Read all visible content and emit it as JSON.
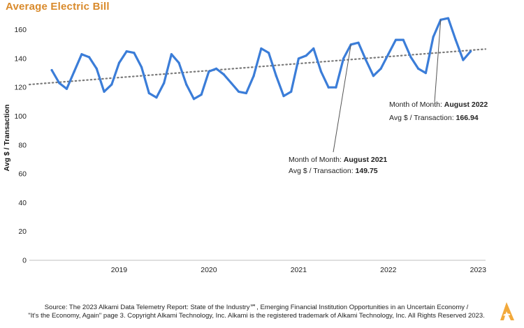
{
  "title": "Average Electric Bill",
  "source": {
    "line1": "Source: The 2023 Alkami Data Telemetry Report: State of the Industry℠, Emerging Financial Institution Opportunities in an Uncertain Economy  /",
    "line2": "\"It's the Economy, Again\" page 3. Copyright Alkami Technology, Inc. Alkami is the registered trademark of Alkami Technology, Inc. All Rights Reserved 2023."
  },
  "logo": {
    "icon": "alkami-logo-icon",
    "color": "#f2a93b"
  },
  "colors": {
    "line": "#3b7dd8",
    "trend": "#7a7a7a",
    "title": "#d98a2b",
    "axis": "#bfbfbf"
  },
  "chart_data": {
    "type": "line",
    "title": "Average Electric Bill",
    "xlabel": "",
    "ylabel": "Avg $ / Transaction",
    "ylim": [
      0,
      170
    ],
    "yticks": [
      0,
      20,
      40,
      60,
      80,
      100,
      120,
      140,
      160
    ],
    "xlim": [
      "2018-01",
      "2023-02"
    ],
    "xticks": [
      "2019",
      "2020",
      "2021",
      "2022",
      "2023"
    ],
    "grid": false,
    "legend": "none",
    "series": [
      {
        "x": [
          "2018-04",
          "2018-05",
          "2018-06",
          "2018-07",
          "2018-08",
          "2018-09",
          "2018-10",
          "2018-11",
          "2018-12",
          "2019-01",
          "2019-02",
          "2019-03",
          "2019-04",
          "2019-05",
          "2019-06",
          "2019-07",
          "2019-08",
          "2019-09",
          "2019-10",
          "2019-11",
          "2019-12",
          "2020-01",
          "2020-02",
          "2020-03",
          "2020-04",
          "2020-05",
          "2020-06",
          "2020-07",
          "2020-08",
          "2020-09",
          "2020-10",
          "2020-11",
          "2020-12",
          "2021-01",
          "2021-02",
          "2021-03",
          "2021-04",
          "2021-05",
          "2021-06",
          "2021-07",
          "2021-08",
          "2021-09",
          "2021-10",
          "2021-11",
          "2021-12",
          "2022-01",
          "2022-02",
          "2022-03",
          "2022-04",
          "2022-05",
          "2022-06",
          "2022-07",
          "2022-08",
          "2022-09",
          "2022-10",
          "2022-11",
          "2022-12"
        ],
        "y": [
          132,
          123,
          119,
          131,
          143,
          141,
          133,
          117,
          122,
          137,
          145,
          144,
          134,
          116,
          113,
          123,
          143,
          137,
          122,
          112,
          115,
          131,
          133,
          129,
          123,
          117,
          116,
          128,
          147,
          144,
          128,
          114,
          117,
          140,
          142,
          147,
          131,
          120,
          120,
          140,
          149.75,
          151,
          139,
          128,
          133,
          143,
          153,
          153,
          141,
          133,
          130,
          155,
          166.94,
          168,
          153,
          139,
          145
        ]
      },
      {
        "name": "trend",
        "style": "dotted",
        "x": [
          "2018-01",
          "2023-02"
        ],
        "y": [
          122,
          146.6
        ]
      }
    ],
    "annotations": [
      {
        "prefix": "Month of Month: ",
        "month": "August 2021",
        "value_prefix": "Avg $ / Transaction: ",
        "value": "149.75",
        "x": "2021-08",
        "y": 149.75
      },
      {
        "prefix": "Month of Month: ",
        "month": "August 2022",
        "value_prefix": "Avg $ / Transaction: ",
        "value": "166.94",
        "x": "2022-08",
        "y": 166.94
      }
    ]
  }
}
